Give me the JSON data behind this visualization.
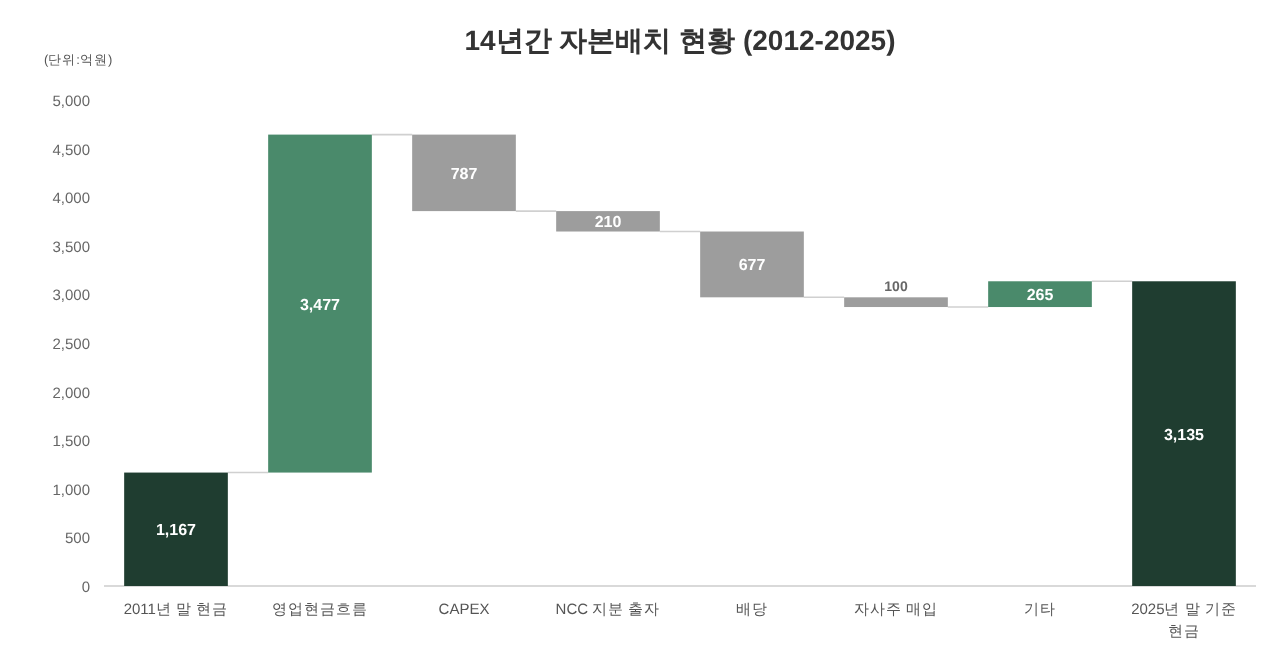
{
  "chart_data": {
    "type": "bar",
    "title": "14년간 자본배치 현황 (2012-2025)",
    "annotations": [
      "(단위:억원)"
    ],
    "categories": [
      "2011년 말 현금",
      "영업현금흐름",
      "CAPEX",
      "NCC 지분 출자",
      "배당",
      "자사주 매입",
      "기타",
      "2025년 말 기준 현금"
    ],
    "values": [
      1167,
      3477,
      -787,
      -210,
      -677,
      -100,
      265,
      3135
    ],
    "base": [
      0,
      1167,
      4644,
      3857,
      3647,
      2970,
      2870,
      0
    ],
    "colors": [
      "#1f3d30",
      "#4a8a6b",
      "#9d9d9d",
      "#9d9d9d",
      "#9d9d9d",
      "#9d9d9d",
      "#4a8a6b",
      "#1f3d30"
    ],
    "value_labels": [
      "1,167",
      "3,477",
      "787",
      "210",
      "677",
      "100",
      "265",
      "3,135"
    ],
    "ylim": [
      0,
      5000
    ],
    "yticks": [
      {
        "value": 0,
        "label": "0"
      },
      {
        "value": 500,
        "label": "500"
      },
      {
        "value": 1000,
        "label": "1,000"
      },
      {
        "value": 1500,
        "label": "1,500"
      },
      {
        "value": 2000,
        "label": "2,000"
      },
      {
        "value": 2500,
        "label": "2,500"
      },
      {
        "value": 3000,
        "label": "3,000"
      },
      {
        "value": 3500,
        "label": "3,500"
      },
      {
        "value": 4000,
        "label": "4,000"
      },
      {
        "value": 4500,
        "label": "4,500"
      },
      {
        "value": 5000,
        "label": "5,000"
      }
    ],
    "grid": false
  }
}
